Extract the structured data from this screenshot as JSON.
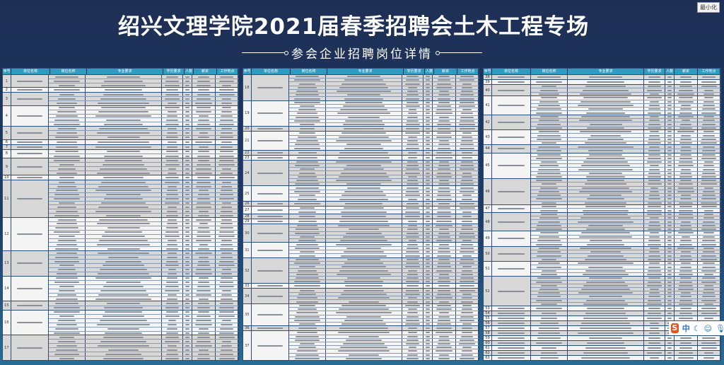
{
  "header": {
    "title": "绍兴文理学院2021届春季招聘会土木工程专场",
    "subtitle": "参会企业招聘岗位详情",
    "minimize_label": "最小化"
  },
  "table": {
    "columns": [
      "序号",
      "单位名称",
      "岗位名称",
      "专业要求",
      "学历要求",
      "人数",
      "薪资",
      "工作地点"
    ],
    "panels": [
      {
        "groups": [
          {
            "no": "1",
            "rows": 3
          },
          {
            "no": "2",
            "rows": 1
          },
          {
            "no": "3",
            "rows": 3
          },
          {
            "no": "4",
            "rows": 5
          },
          {
            "no": "5",
            "rows": 3
          },
          {
            "no": "6",
            "rows": 1
          },
          {
            "no": "7",
            "rows": 1
          },
          {
            "no": "8",
            "rows": 2
          },
          {
            "no": "9",
            "rows": 4
          },
          {
            "no": "10",
            "rows": 1
          },
          {
            "no": "11",
            "rows": 9
          },
          {
            "no": "12",
            "rows": 8
          },
          {
            "no": "13",
            "rows": 6
          },
          {
            "no": "14",
            "rows": 6
          },
          {
            "no": "15",
            "rows": 2
          },
          {
            "no": "16",
            "rows": 6
          },
          {
            "no": "17",
            "rows": 6
          }
        ]
      },
      {
        "groups": [
          {
            "no": "18",
            "rows": 7
          },
          {
            "no": "19",
            "rows": 7
          },
          {
            "no": "20",
            "rows": 1
          },
          {
            "no": "21",
            "rows": 5
          },
          {
            "no": "22",
            "rows": 1
          },
          {
            "no": "23",
            "rows": 1
          },
          {
            "no": "24",
            "rows": 7
          },
          {
            "no": "25",
            "rows": 4
          },
          {
            "no": "26",
            "rows": 1
          },
          {
            "no": "27",
            "rows": 2
          },
          {
            "no": "28",
            "rows": 1
          },
          {
            "no": "29",
            "rows": 1
          },
          {
            "no": "30",
            "rows": 5
          },
          {
            "no": "31",
            "rows": 4
          },
          {
            "no": "32",
            "rows": 7
          },
          {
            "no": "33",
            "rows": 1
          },
          {
            "no": "34",
            "rows": 4
          },
          {
            "no": "35",
            "rows": 6
          },
          {
            "no": "36",
            "rows": 1
          },
          {
            "no": "37",
            "rows": 8
          }
        ]
      },
      {
        "groups": [
          {
            "no": "38",
            "rows": 1
          },
          {
            "no": "39",
            "rows": 1
          },
          {
            "no": "40",
            "rows": 3
          },
          {
            "no": "41",
            "rows": 5
          },
          {
            "no": "42",
            "rows": 4
          },
          {
            "no": "43",
            "rows": 4
          },
          {
            "no": "44",
            "rows": 2
          },
          {
            "no": "45",
            "rows": 7
          },
          {
            "no": "46",
            "rows": 7
          },
          {
            "no": "47",
            "rows": 2
          },
          {
            "no": "48",
            "rows": 5
          },
          {
            "no": "49",
            "rows": 4
          },
          {
            "no": "50",
            "rows": 4
          },
          {
            "no": "51",
            "rows": 4
          },
          {
            "no": "52",
            "rows": 8
          },
          {
            "no": "53",
            "rows": 1
          },
          {
            "no": "54",
            "rows": 1
          },
          {
            "no": "55",
            "rows": 1
          },
          {
            "no": "56",
            "rows": 1
          },
          {
            "no": "57",
            "rows": 1
          },
          {
            "no": "58",
            "rows": 1
          },
          {
            "no": "59",
            "rows": 1
          },
          {
            "no": "60",
            "rows": 1
          },
          {
            "no": "61",
            "rows": 1
          },
          {
            "no": "62",
            "rows": 1
          },
          {
            "no": "63",
            "rows": 1
          }
        ]
      }
    ]
  },
  "ime": {
    "logo": "S",
    "mode": "中"
  },
  "colors": {
    "background": "#1e2f55",
    "header": "#2e9cc0",
    "row_alt": "#d8d8d8",
    "row": "#f4f4f4"
  }
}
